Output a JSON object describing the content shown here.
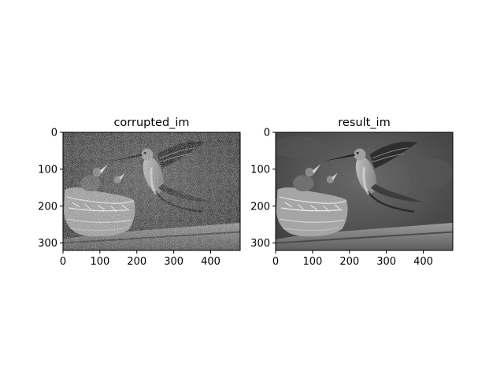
{
  "figure": {
    "background": "#ffffff"
  },
  "chart_data": [
    {
      "type": "image",
      "title": "corrupted_im",
      "colormap": "gray",
      "noise": "salt-and-pepper / gaussian",
      "xlim": [
        0,
        480
      ],
      "ylim": [
        320,
        0
      ],
      "xticks": [
        0,
        100,
        200,
        300,
        400
      ],
      "yticks": [
        0,
        100,
        200,
        300
      ],
      "content": "grayscale photo: hummingbird feeding two chicks in a nest on a branch (noisy)"
    },
    {
      "type": "image",
      "title": "result_im",
      "colormap": "gray",
      "noise": "none (denoised)",
      "xlim": [
        0,
        480
      ],
      "ylim": [
        320,
        0
      ],
      "xticks": [
        0,
        100,
        200,
        300,
        400
      ],
      "yticks": [
        0,
        100,
        200,
        300
      ],
      "content": "grayscale photo: hummingbird feeding two chicks in a nest on a branch (denoised)"
    }
  ]
}
